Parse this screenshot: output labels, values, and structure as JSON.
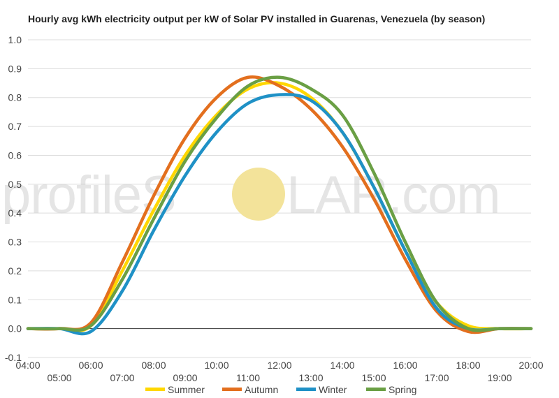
{
  "watermark": {
    "part1": "profileS",
    "part2": "LAR.com",
    "sun_color": "#f3e39a"
  },
  "chart_data": {
    "type": "line",
    "title": "Hourly avg kWh electricity output per kW of Solar PV installed in Guarenas, Venezuela (by season)",
    "xlabel": "",
    "ylabel": "",
    "x_ticks_upper": [
      "04:00",
      "06:00",
      "08:00",
      "10:00",
      "12:00",
      "14:00",
      "16:00",
      "18:00",
      "20:00"
    ],
    "x_ticks_lower": [
      "05:00",
      "07:00",
      "09:00",
      "11:00",
      "13:00",
      "15:00",
      "17:00",
      "19:00"
    ],
    "y_ticks": [
      "1.0",
      "0.9",
      "0.8",
      "0.7",
      "0.6",
      "0.5",
      "0.4",
      "0.3",
      "0.2",
      "0.1",
      "0.0",
      "-0.1"
    ],
    "ylim": [
      -0.1,
      1.0
    ],
    "x": [
      4,
      5,
      6,
      7,
      8,
      9,
      10,
      11,
      12,
      13,
      14,
      15,
      16,
      17,
      18,
      19,
      20
    ],
    "grid": true,
    "legend_position": "bottom",
    "series": [
      {
        "name": "Summer",
        "color": "#ffd700",
        "values": [
          0,
          0,
          0.01,
          0.2,
          0.41,
          0.6,
          0.74,
          0.83,
          0.85,
          0.8,
          0.68,
          0.49,
          0.27,
          0.09,
          0.01,
          0,
          0
        ]
      },
      {
        "name": "Autumn",
        "color": "#e36f1e",
        "values": [
          0,
          0,
          0.02,
          0.23,
          0.46,
          0.66,
          0.8,
          0.87,
          0.84,
          0.76,
          0.63,
          0.45,
          0.24,
          0.06,
          -0.01,
          0,
          0
        ]
      },
      {
        "name": "Winter",
        "color": "#1f91c6",
        "values": [
          0,
          0,
          -0.01,
          0.13,
          0.34,
          0.53,
          0.68,
          0.78,
          0.81,
          0.79,
          0.68,
          0.49,
          0.27,
          0.07,
          0,
          0,
          0
        ]
      },
      {
        "name": "Spring",
        "color": "#6a9f44",
        "values": [
          0,
          0,
          0.01,
          0.17,
          0.38,
          0.58,
          0.73,
          0.84,
          0.87,
          0.83,
          0.74,
          0.54,
          0.3,
          0.09,
          0,
          0,
          0
        ]
      }
    ]
  }
}
